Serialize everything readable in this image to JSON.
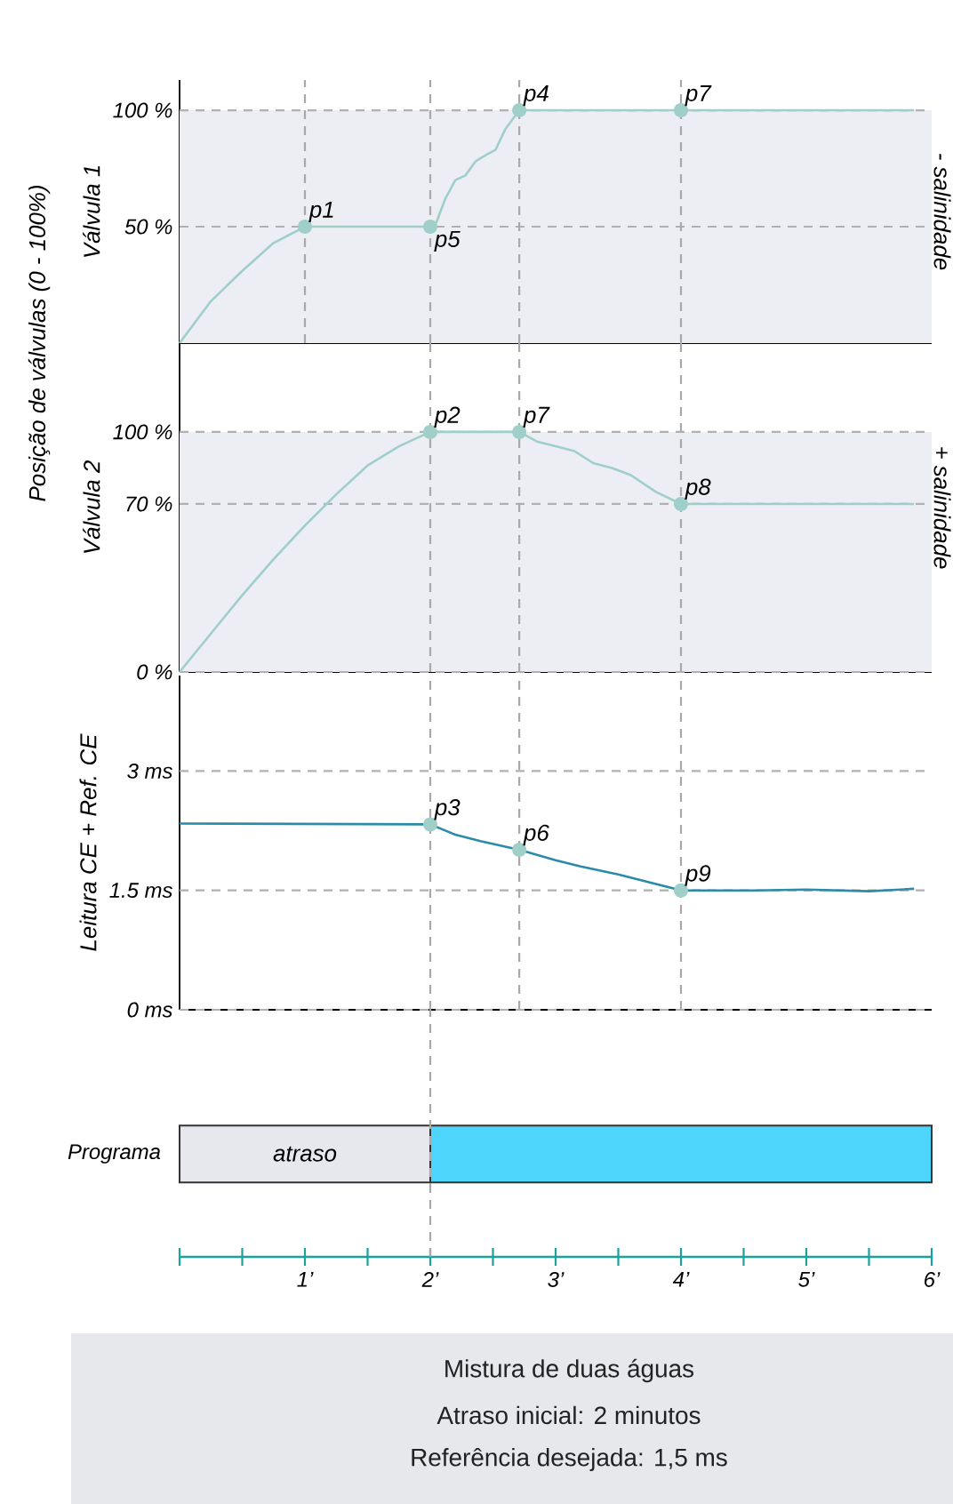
{
  "chart_data": [
    {
      "type": "line",
      "ylabel": "Válvula 1",
      "y2label": "- salinidade",
      "xlim": [
        0,
        6
      ],
      "ylim": [
        0,
        113
      ],
      "yticks": [
        {
          "value": 50,
          "label": "50 %"
        },
        {
          "value": 100,
          "label": "100 %"
        }
      ],
      "grid": "y",
      "tick_labels": "y",
      "bands": [
        {
          "axis": "y",
          "from": 0,
          "to": 100,
          "color": "#eceef3"
        }
      ],
      "ref_lines": [
        {
          "axis": "x",
          "value": 1,
          "color": "#a9a9a9",
          "line_style": "dashed"
        },
        {
          "axis": "x",
          "value": 2,
          "color": "#a9a9a9",
          "line_style": "dashed"
        },
        {
          "axis": "x",
          "value": 2.71,
          "color": "#a9a9a9",
          "line_style": "dashed"
        },
        {
          "axis": "x",
          "value": 4,
          "color": "#a9a9a9",
          "line_style": "dashed"
        }
      ],
      "annotations": [
        "Posição de válvulas (0 - 100%)",
        {
          "text": "p1",
          "x": 1,
          "y": 50
        },
        {
          "text": "p5",
          "x": 2,
          "y": 50
        },
        {
          "text": "p4",
          "x": 2.71,
          "y": 100
        },
        {
          "text": "p7",
          "x": 4,
          "y": 100
        }
      ],
      "series": [
        {
          "color": "#9fcfc8",
          "x": [
            0,
            0.25,
            0.5,
            0.75,
            1,
            2,
            2.05,
            2.12,
            2.2,
            2.28,
            2.36,
            2.45,
            2.52,
            2.6,
            2.71,
            4,
            5.86
          ],
          "values": [
            0,
            18,
            31,
            43,
            50,
            50,
            52,
            62,
            70,
            72,
            78,
            81,
            83,
            92,
            100,
            100,
            100
          ]
        }
      ]
    },
    {
      "type": "line",
      "ylabel": "Válvula 2",
      "y2label": "+ salinidade",
      "xlim": [
        0,
        6
      ],
      "ylim": [
        0,
        137
      ],
      "yticks": [
        {
          "value": 0,
          "label": "0 %"
        },
        {
          "value": 70,
          "label": "70 %"
        },
        {
          "value": 100,
          "label": "100 %"
        }
      ],
      "grid": "y",
      "tick_labels": "y",
      "bands": [
        {
          "axis": "y",
          "from": 0,
          "to": 100,
          "color": "#eceef3"
        }
      ],
      "ref_lines": [
        {
          "axis": "x",
          "value": 2,
          "color": "#a9a9a9",
          "line_style": "dashed"
        },
        {
          "axis": "x",
          "value": 2.71,
          "color": "#a9a9a9",
          "line_style": "dashed"
        },
        {
          "axis": "x",
          "value": 4,
          "color": "#a9a9a9",
          "line_style": "dashed"
        }
      ],
      "annotations": [
        {
          "text": "p2",
          "x": 2,
          "y": 100
        },
        {
          "text": "p7",
          "x": 2.71,
          "y": 100
        },
        {
          "text": "p8",
          "x": 4,
          "y": 70
        }
      ],
      "series": [
        {
          "color": "#9fcfc8",
          "x": [
            0,
            0.25,
            0.5,
            0.75,
            1,
            1.25,
            1.5,
            1.75,
            2,
            2.71,
            2.85,
            3.0,
            3.15,
            3.3,
            3.45,
            3.6,
            3.8,
            4,
            5.86
          ],
          "values": [
            0,
            16,
            32,
            47,
            61,
            74,
            86,
            94,
            100,
            100,
            96,
            94,
            92,
            87,
            85,
            82,
            75,
            70,
            70
          ]
        }
      ]
    },
    {
      "type": "line",
      "ylabel": "Leitura CE + Ref. CE",
      "xlim": [
        0,
        6
      ],
      "ylim": [
        0,
        4.2
      ],
      "yticks": [
        {
          "value": 0,
          "label": "0 ms"
        },
        {
          "value": 1.5,
          "label": "1.5 ms"
        },
        {
          "value": 3,
          "label": "3 ms"
        }
      ],
      "grid": "y",
      "tick_labels": "y",
      "ref_lines": [
        {
          "axis": "x",
          "value": 2,
          "color": "#a9a9a9",
          "line_style": "dashed"
        },
        {
          "axis": "x",
          "value": 2.71,
          "color": "#a9a9a9",
          "line_style": "dashed"
        },
        {
          "axis": "x",
          "value": 4,
          "color": "#a9a9a9",
          "line_style": "dashed"
        }
      ],
      "annotations": [
        {
          "text": "p3",
          "x": 2,
          "y": 2.33
        },
        {
          "text": "p6",
          "x": 2.71,
          "y": 2.01
        },
        {
          "text": "p9",
          "x": 4,
          "y": 1.5
        }
      ],
      "series": [
        {
          "color": "#2b8ba8",
          "x": [
            0,
            2,
            2.2,
            2.4,
            2.71,
            3.0,
            3.2,
            3.5,
            4,
            4.6,
            5.0,
            5.5,
            5.86
          ],
          "values": [
            2.34,
            2.33,
            2.2,
            2.12,
            2.01,
            1.88,
            1.8,
            1.7,
            1.5,
            1.5,
            1.51,
            1.49,
            1.52
          ]
        }
      ]
    },
    {
      "type": "bar",
      "orientation": "horizontal",
      "stacked": true,
      "categories": [
        "Programa"
      ],
      "xlim": [
        0,
        6
      ],
      "xticks": [
        {
          "value": 0,
          "label": null
        },
        {
          "value": 0.5,
          "label": null
        },
        {
          "value": 1,
          "label": "1’"
        },
        {
          "value": 1.5,
          "label": null
        },
        {
          "value": 2,
          "label": "2’"
        },
        {
          "value": 2.5,
          "label": null
        },
        {
          "value": 3,
          "label": "3’"
        },
        {
          "value": 3.5,
          "label": null
        },
        {
          "value": 4,
          "label": "4’"
        },
        {
          "value": 4.5,
          "label": null
        },
        {
          "value": 5,
          "label": "5’"
        },
        {
          "value": 5.5,
          "label": null
        },
        {
          "value": 6,
          "label": "6’"
        }
      ],
      "ref_lines": [
        {
          "axis": "x",
          "value": 2,
          "color": "#a9a9a9",
          "line_style": "dashed"
        }
      ],
      "annotations": [
        "Mistura de duas águas",
        "Atraso inicial: 2 minutos",
        "Referência desejada: 1,5 ms"
      ],
      "series": [
        {
          "name": "atraso",
          "color": "#e6e8ee",
          "values": [
            2
          ]
        },
        {
          "color": "#4dd5fb",
          "values": [
            4
          ]
        }
      ]
    }
  ]
}
